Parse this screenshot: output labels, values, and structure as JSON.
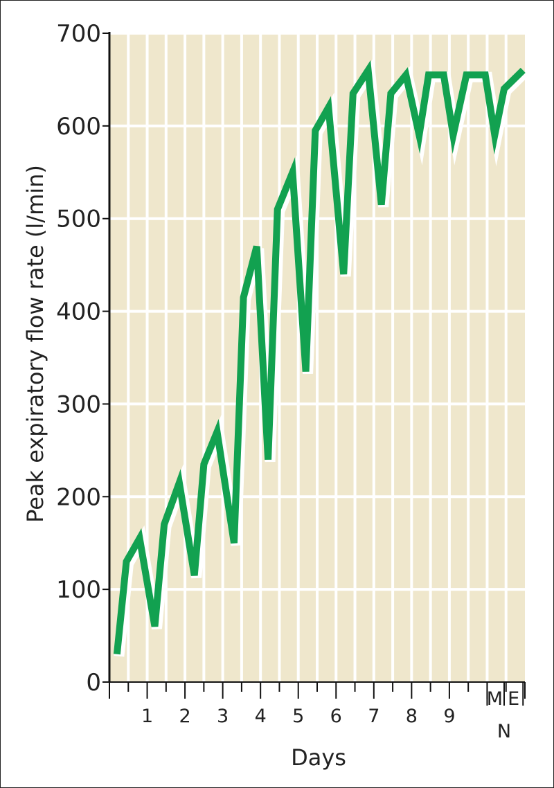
{
  "chart_data": {
    "type": "line",
    "title": "",
    "ylabel": "Peak expiratory flow rate  (l/min)",
    "xlabel": "Days",
    "ylim": [
      0,
      700
    ],
    "yticks": [
      0,
      100,
      200,
      300,
      400,
      500,
      600,
      700
    ],
    "xlim": [
      0,
      11
    ],
    "xticks": [
      {
        "label": "1",
        "x": 1
      },
      {
        "label": "2",
        "x": 2
      },
      {
        "label": "3",
        "x": 3
      },
      {
        "label": "4",
        "x": 4
      },
      {
        "label": "5",
        "x": 5
      },
      {
        "label": "6",
        "x": 6
      },
      {
        "label": "7",
        "x": 7
      },
      {
        "label": "8",
        "x": 8
      },
      {
        "label": "9",
        "x": 9
      }
    ],
    "extra_x_labels": [
      {
        "label": "M",
        "x": 10.2
      },
      {
        "label": "E",
        "x": 10.7
      },
      {
        "label": "N",
        "x": 10.45,
        "row": 2
      }
    ],
    "grid": true,
    "background_color": "#efe7cc",
    "line_color": "#12a150",
    "series": [
      {
        "points": [
          [
            0.2,
            30
          ],
          [
            0.45,
            130
          ],
          [
            0.8,
            155
          ],
          [
            1.2,
            60
          ],
          [
            1.45,
            170
          ],
          [
            1.85,
            215
          ],
          [
            2.25,
            115
          ],
          [
            2.5,
            235
          ],
          [
            2.85,
            270
          ],
          [
            3.3,
            150
          ],
          [
            3.55,
            415
          ],
          [
            3.9,
            470
          ],
          [
            4.2,
            240
          ],
          [
            4.45,
            510
          ],
          [
            4.85,
            550
          ],
          [
            5.2,
            335
          ],
          [
            5.45,
            595
          ],
          [
            5.8,
            620
          ],
          [
            6.2,
            440
          ],
          [
            6.45,
            635
          ],
          [
            6.85,
            660
          ],
          [
            7.2,
            515
          ],
          [
            7.45,
            635
          ],
          [
            7.85,
            655
          ],
          [
            8.2,
            590
          ],
          [
            8.45,
            655
          ],
          [
            8.85,
            655
          ],
          [
            9.1,
            590
          ],
          [
            9.45,
            655
          ],
          [
            9.95,
            655
          ],
          [
            10.2,
            590
          ],
          [
            10.45,
            640
          ],
          [
            10.95,
            660
          ]
        ]
      }
    ]
  }
}
